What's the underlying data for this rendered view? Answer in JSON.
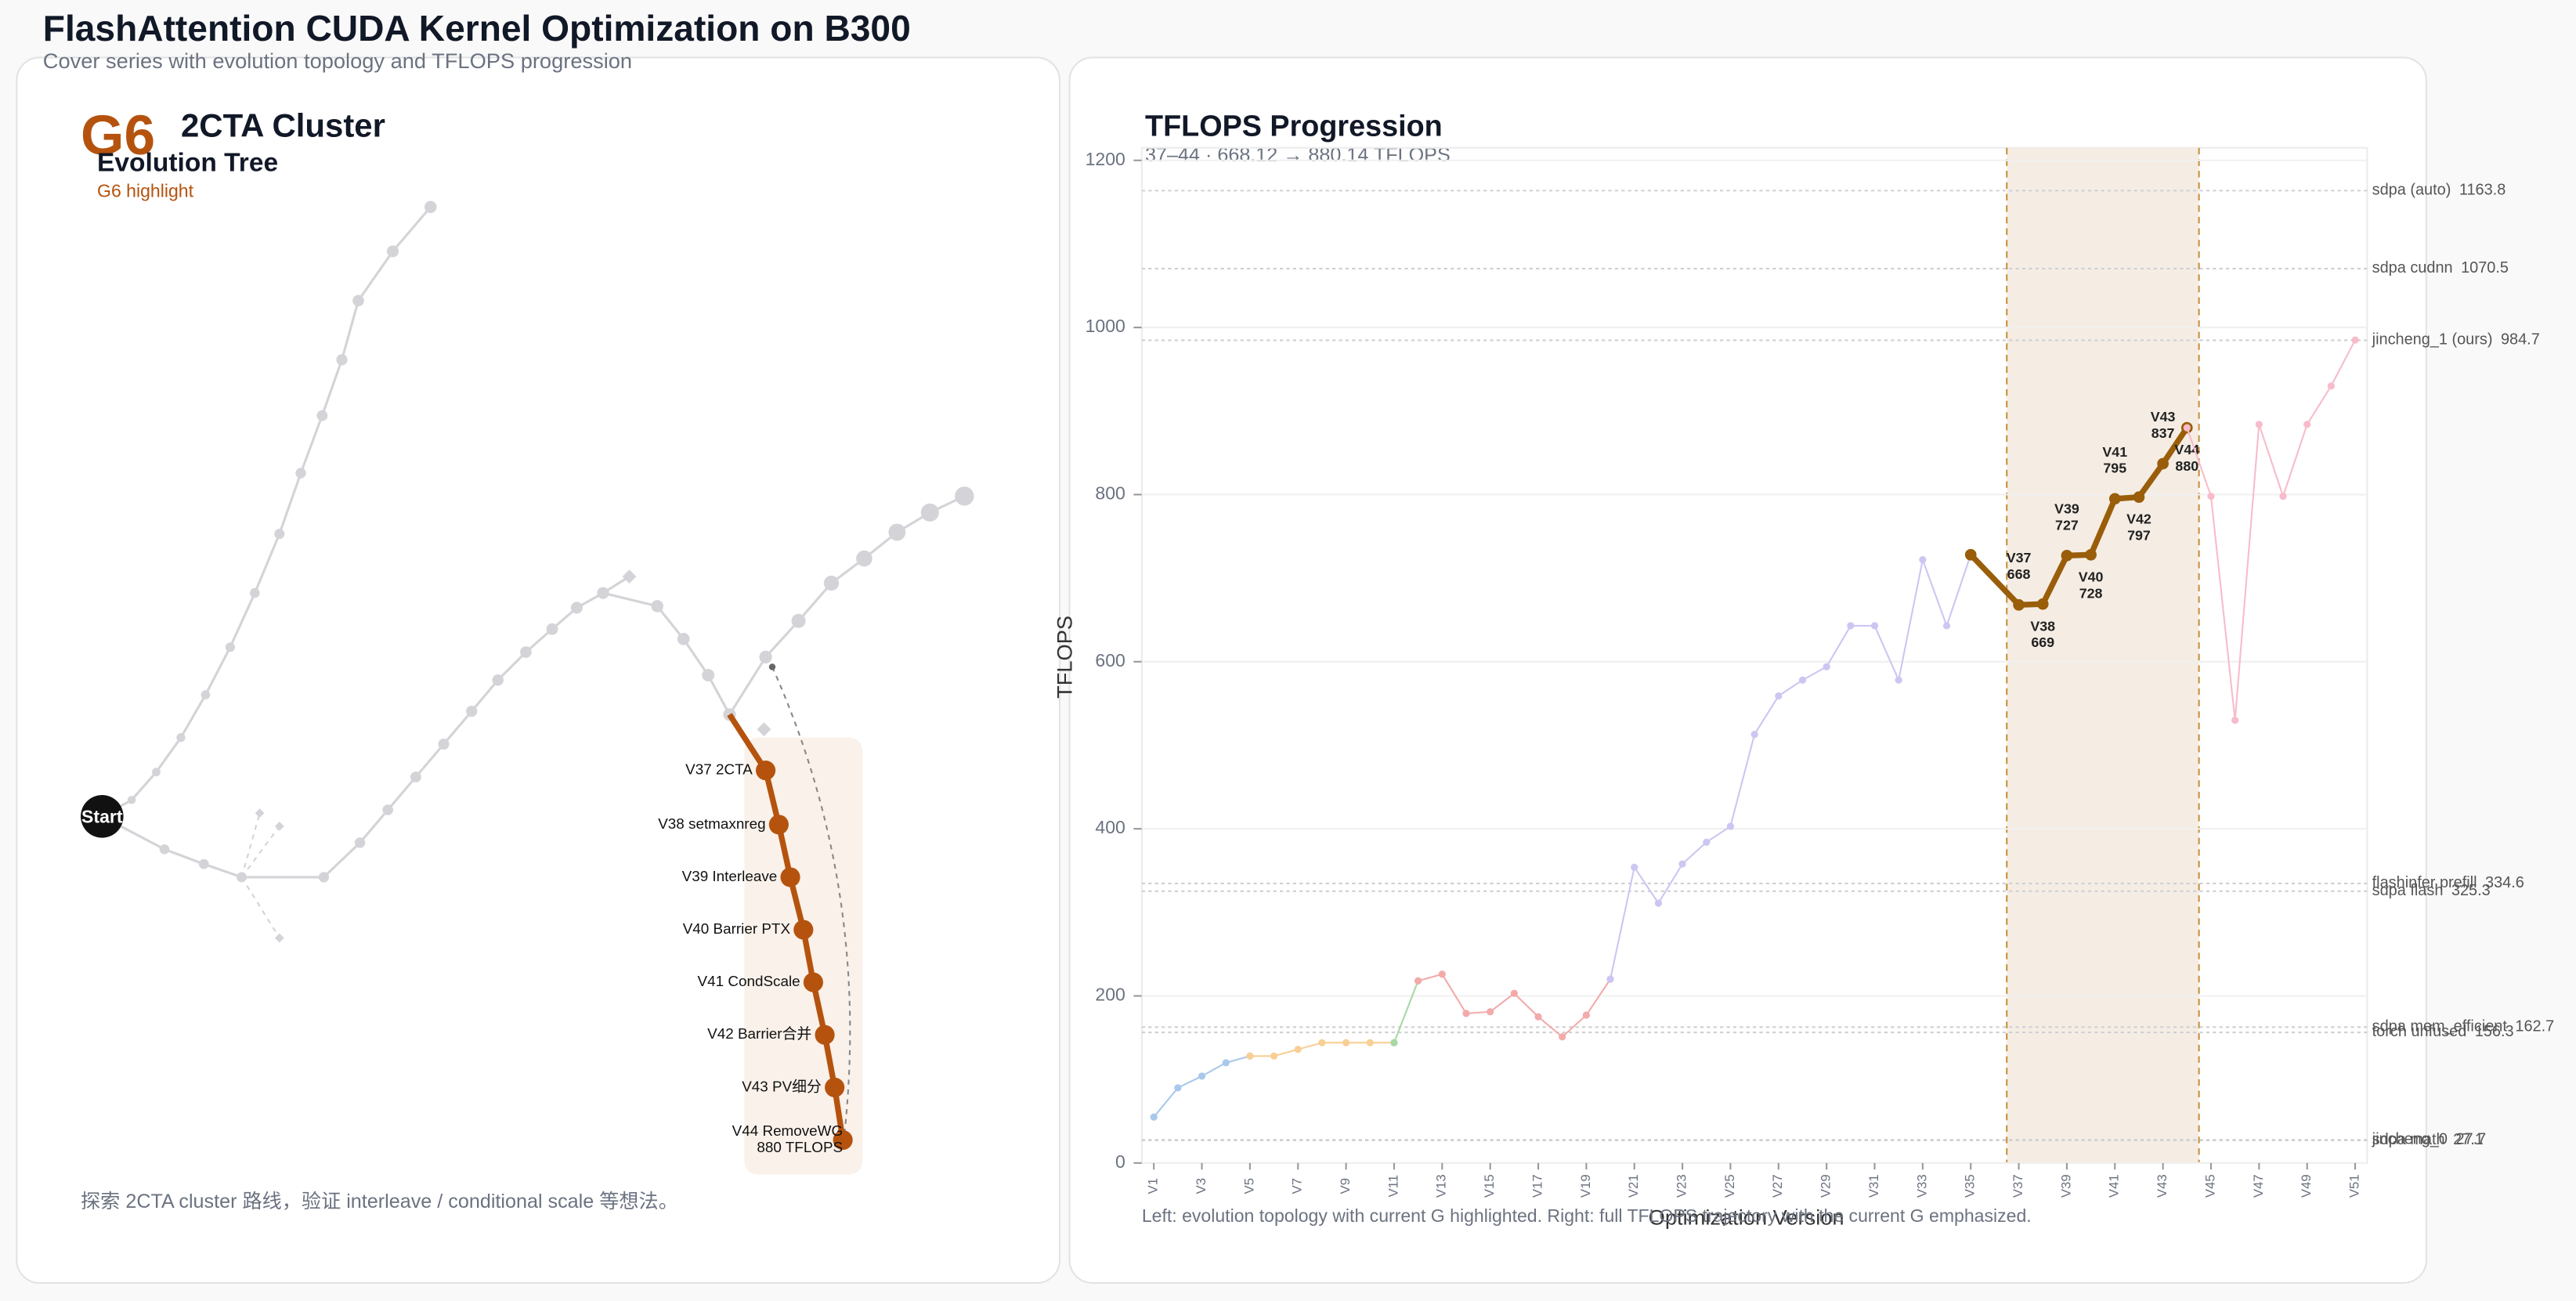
{
  "header": {
    "title": "FlashAttention CUDA Kernel Optimization on B300",
    "subtitle": "Cover series with evolution topology and TFLOPS progression"
  },
  "left_panel": {
    "group": "G6",
    "name": "2CTA Cluster",
    "section": "Evolution Tree",
    "tag": "G6 highlight",
    "root": "Start",
    "nodes": [
      {
        "label": "V37 2CTA"
      },
      {
        "label": "V38 setmaxnreg"
      },
      {
        "label": "V39 Interleave"
      },
      {
        "label": "V40 Barrier PTX"
      },
      {
        "label": "V41 CondScale"
      },
      {
        "label": "V42 Barrier合并"
      },
      {
        "label": "V43 PV细分"
      },
      {
        "label": "V44 RemoveWG",
        "detail": "880 TFLOPS"
      }
    ],
    "caption": "探索 2CTA cluster 路线，验证 interleave / conditional scale 等想法。"
  },
  "chart_data": {
    "type": "line",
    "title": "TFLOPS Progression",
    "subtitle": "37–44  ·  668.12 → 880.14 TFLOPS",
    "x_label": "Optimization Version",
    "y_label": "TFLOPS",
    "footnote": "Left: evolution topology with current G highlighted. Right: full TFLOPS trajectory with the current G emphasized.",
    "xlim": [
      0.5,
      51.5
    ],
    "xticks": [
      {
        "value": 1,
        "label": "V1"
      },
      {
        "value": 3,
        "label": "V3"
      },
      {
        "value": 5,
        "label": "V5"
      },
      {
        "value": 7,
        "label": "V7"
      },
      {
        "value": 9,
        "label": "V9"
      },
      {
        "value": 11,
        "label": "V11"
      },
      {
        "value": 13,
        "label": "V13"
      },
      {
        "value": 15,
        "label": "V15"
      },
      {
        "value": 17,
        "label": "V17"
      },
      {
        "value": 19,
        "label": "V19"
      },
      {
        "value": 21,
        "label": "V21"
      },
      {
        "value": 23,
        "label": "V23"
      },
      {
        "value": 25,
        "label": "V25"
      },
      {
        "value": 27,
        "label": "V27"
      },
      {
        "value": 29,
        "label": "V29"
      },
      {
        "value": 31,
        "label": "V31"
      },
      {
        "value": 33,
        "label": "V33"
      },
      {
        "value": 35,
        "label": "V35"
      },
      {
        "value": 37,
        "label": "V37"
      },
      {
        "value": 39,
        "label": "V39"
      },
      {
        "value": 41,
        "label": "V41"
      },
      {
        "value": 43,
        "label": "V43"
      },
      {
        "value": 45,
        "label": "V45"
      },
      {
        "value": 47,
        "label": "V47"
      },
      {
        "value": 49,
        "label": "V49"
      },
      {
        "value": 51,
        "label": "V51"
      }
    ],
    "ylim": [
      0,
      1215
    ],
    "yticks": [
      0,
      200,
      400,
      600,
      800,
      1000,
      1200
    ],
    "grid": true,
    "highlight": [
      37,
      44
    ],
    "highlight_color": "#c8913c",
    "series": [
      {
        "color": "#a9c8ec",
        "width": 1,
        "x": [
          1,
          2,
          3,
          4,
          5
        ],
        "values": [
          55,
          90,
          104,
          120,
          128
        ]
      },
      {
        "color": "#f8cf95",
        "width": 1,
        "x": [
          5,
          6,
          7,
          8,
          9,
          10,
          11
        ],
        "values": [
          128,
          128,
          136,
          144,
          144,
          144,
          144
        ]
      },
      {
        "color": "#a6d9a6",
        "width": 1,
        "x": [
          11,
          12
        ],
        "values": [
          144,
          218
        ]
      },
      {
        "color": "#f3aaaa",
        "width": 1,
        "x": [
          12,
          13,
          14,
          15,
          16,
          17,
          18,
          19,
          20
        ],
        "values": [
          218,
          226,
          179,
          181,
          203,
          175,
          151,
          177,
          220
        ]
      },
      {
        "color": "#cbc7f2",
        "width": 1,
        "x": [
          20,
          21,
          22,
          23,
          24,
          25,
          26,
          27,
          28,
          29,
          30,
          31,
          32,
          33,
          34,
          35
        ],
        "values": [
          220,
          354,
          311,
          358,
          384,
          403,
          513,
          559,
          578,
          594,
          643,
          643,
          578,
          722,
          643,
          728
        ]
      },
      {
        "color": "#9a5d0a",
        "width": 3.5,
        "x": [
          35,
          37,
          38,
          39,
          40,
          41,
          42,
          43,
          44
        ],
        "values": [
          728,
          668,
          669,
          727,
          728,
          795,
          797,
          837,
          880
        ],
        "labels": [
          null,
          "V37",
          "V38",
          "V39",
          "V40",
          "V41",
          "V42",
          "V43",
          "V44"
        ]
      },
      {
        "color": "#f7bccb",
        "width": 1,
        "x": [
          44,
          45,
          46,
          47,
          48,
          49,
          50,
          51
        ],
        "values": [
          880,
          798,
          530,
          884,
          798,
          884,
          930,
          985
        ]
      }
    ],
    "references": [
      {
        "label": "sdpa (auto)",
        "value": 1163.8
      },
      {
        "label": "sdpa cudnn",
        "value": 1070.5
      },
      {
        "label": "jincheng_1 (ours)",
        "value": 984.7
      },
      {
        "label": "flashinfer prefill",
        "value": 334.6
      },
      {
        "label": "sdpa flash",
        "value": 325.3
      },
      {
        "label": "sdpa mem_efficient",
        "value": 162.7
      },
      {
        "label": "torch unfused",
        "value": 156.3
      },
      {
        "label": "jincheng_0",
        "value": 27.7
      },
      {
        "label": "sdpa math",
        "value": 27.1
      }
    ]
  }
}
